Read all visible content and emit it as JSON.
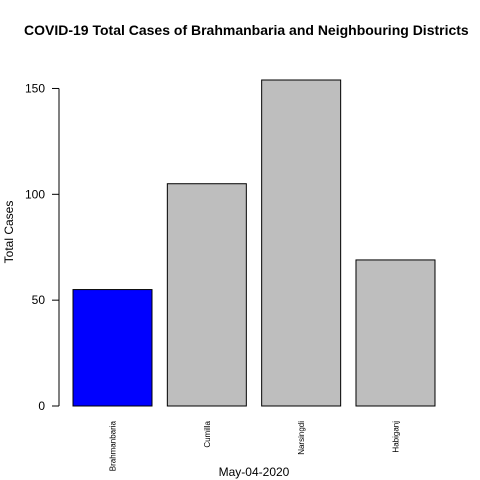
{
  "chart_data": {
    "type": "bar",
    "title": "COVID-19 Total Cases of Brahmanbaria and Neighbouring Districts",
    "xlabel": "May-04-2020",
    "ylabel": "Total Cases",
    "categories": [
      "Brahmanbaria",
      "Cumilla",
      "Narsingdi",
      "Habiganj"
    ],
    "values": [
      55,
      105,
      154,
      69
    ],
    "bar_colors": [
      "#0000ff",
      "#bebebe",
      "#bebebe",
      "#bebebe"
    ],
    "bar_border_color": "#000000",
    "yticks": [
      0,
      50,
      100,
      150
    ],
    "ylim": [
      0,
      154
    ],
    "grid": false,
    "legend": "none"
  }
}
